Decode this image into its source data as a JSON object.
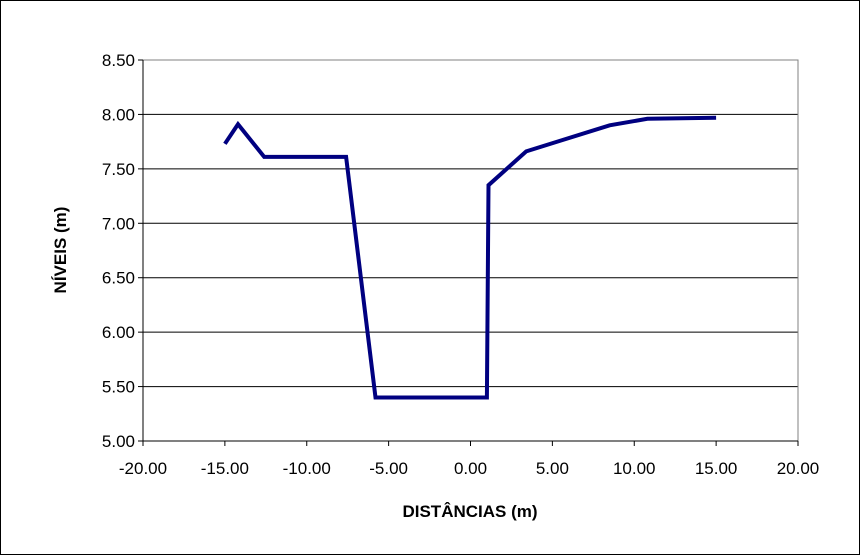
{
  "chart_data": {
    "type": "line",
    "title": "",
    "xlabel": "DISTÂNCIAS (m)",
    "ylabel": "NÍVEIS (m)",
    "xlim": [
      -20,
      20
    ],
    "ylim": [
      5.0,
      8.5
    ],
    "x_ticks": [
      -20,
      -15,
      -10,
      -5,
      0,
      5,
      10,
      15,
      20
    ],
    "x_tick_labels": [
      "-20.00",
      "-15.00",
      "-10.00",
      "-5.00",
      "0.00",
      "5.00",
      "10.00",
      "15.00",
      "20.00"
    ],
    "y_ticks": [
      5.0,
      5.5,
      6.0,
      6.5,
      7.0,
      7.5,
      8.0,
      8.5
    ],
    "y_tick_labels": [
      "5.00",
      "5.50",
      "6.00",
      "6.50",
      "7.00",
      "7.50",
      "8.00",
      "8.50"
    ],
    "grid": true,
    "legend": "none",
    "series": [
      {
        "color": "#000080",
        "x": [
          -15.0,
          -14.2,
          -12.6,
          -7.6,
          -5.8,
          1.0,
          1.1,
          3.4,
          5.5,
          8.5,
          10.8,
          15.0
        ],
        "y": [
          7.73,
          7.91,
          7.61,
          7.61,
          5.4,
          5.4,
          7.35,
          7.66,
          7.76,
          7.9,
          7.96,
          7.97
        ]
      }
    ]
  },
  "colors": {
    "plot_background": "#ffffff",
    "gridline": "#000000",
    "line": "#000080"
  }
}
